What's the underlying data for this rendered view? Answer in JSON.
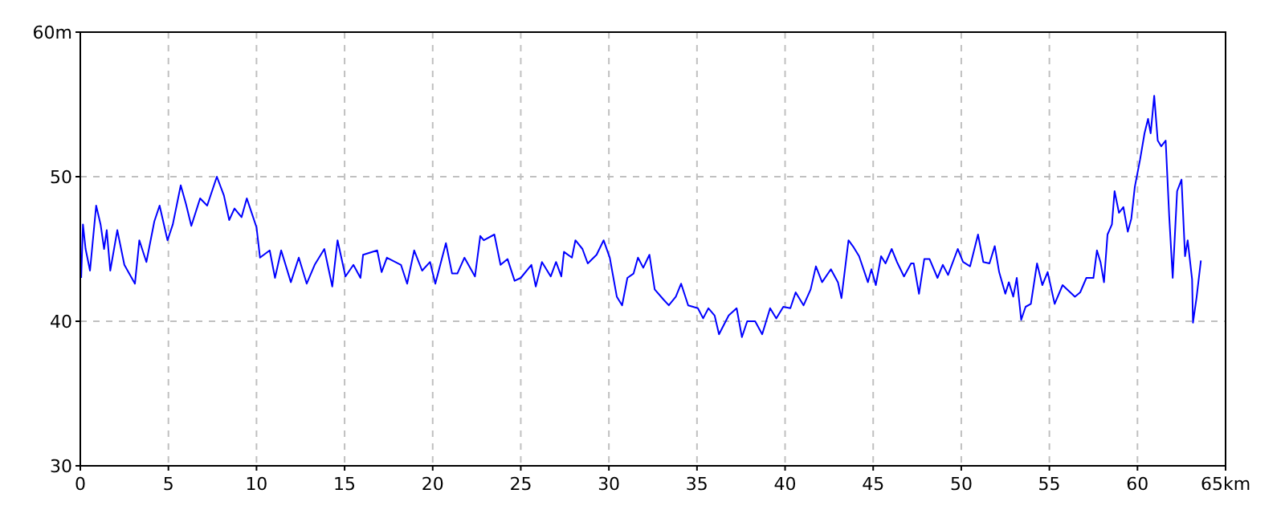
{
  "chart_data": {
    "type": "line",
    "xlim": [
      0,
      65
    ],
    "ylim": [
      30,
      60
    ],
    "xticks": [
      0,
      5,
      10,
      15,
      20,
      25,
      30,
      35,
      40,
      45,
      50,
      55,
      60,
      {
        "value": 65,
        "label": "65km"
      }
    ],
    "yticks": [
      30,
      40,
      50,
      {
        "value": 60,
        "label": "60m"
      }
    ],
    "grid": true,
    "line_style": "solid",
    "marker": "none",
    "series": [
      {
        "color": "#0000ff",
        "x": [
          0.05,
          0.15,
          0.3,
          0.55,
          0.9,
          1.15,
          1.35,
          1.5,
          1.7,
          2.1,
          2.5,
          3.1,
          3.35,
          3.75,
          4.2,
          4.5,
          4.95,
          5.25,
          5.7,
          6.0,
          6.3,
          6.8,
          7.2,
          7.75,
          8.15,
          8.45,
          8.75,
          9.15,
          9.45,
          10.0,
          10.2,
          10.75,
          11.05,
          11.4,
          11.95,
          12.4,
          12.85,
          13.3,
          13.85,
          14.3,
          14.6,
          15.05,
          15.5,
          15.9,
          16.05,
          16.85,
          17.1,
          17.4,
          18.2,
          18.55,
          18.95,
          19.4,
          19.85,
          20.15,
          20.75,
          21.1,
          21.4,
          21.8,
          22.4,
          22.7,
          22.9,
          23.5,
          23.85,
          24.25,
          24.65,
          25.0,
          25.6,
          25.85,
          26.2,
          26.7,
          27.0,
          27.3,
          27.45,
          27.9,
          28.1,
          28.5,
          28.8,
          29.3,
          29.7,
          30.05,
          30.45,
          30.75,
          31.05,
          31.4,
          31.65,
          31.95,
          32.3,
          32.6,
          33.1,
          33.4,
          33.8,
          34.1,
          34.5,
          35.05,
          35.35,
          35.65,
          36.0,
          36.25,
          36.8,
          37.25,
          37.55,
          37.85,
          38.3,
          38.7,
          39.15,
          39.5,
          39.9,
          40.3,
          40.6,
          41.05,
          41.45,
          41.75,
          42.1,
          42.6,
          43.0,
          43.2,
          43.6,
          43.9,
          44.2,
          44.7,
          44.9,
          45.15,
          45.45,
          45.7,
          46.05,
          46.35,
          46.75,
          47.15,
          47.3,
          47.6,
          47.9,
          48.2,
          48.65,
          48.95,
          49.25,
          49.8,
          50.1,
          50.5,
          50.95,
          51.25,
          51.6,
          51.9,
          52.15,
          52.5,
          52.7,
          52.95,
          53.15,
          53.4,
          53.65,
          53.95,
          54.3,
          54.6,
          54.9,
          55.3,
          55.75,
          56.1,
          56.45,
          56.75,
          57.1,
          57.5,
          57.7,
          57.9,
          58.1,
          58.3,
          58.55,
          58.7,
          58.95,
          59.2,
          59.45,
          59.65,
          59.85,
          60.15,
          60.4,
          60.6,
          60.75,
          60.95,
          61.15,
          61.35,
          61.6,
          61.8,
          62.0,
          62.25,
          62.5,
          62.7,
          62.85,
          63.1,
          63.15,
          63.35,
          63.6
        ],
        "values": [
          43.0,
          46.7,
          45.0,
          43.5,
          48.0,
          46.7,
          45.0,
          46.3,
          43.5,
          46.3,
          43.9,
          42.6,
          45.6,
          44.1,
          46.9,
          48.0,
          45.6,
          46.7,
          49.4,
          48.1,
          46.6,
          48.5,
          48.0,
          50.0,
          48.7,
          47.0,
          47.8,
          47.2,
          48.5,
          46.5,
          44.4,
          44.9,
          43.0,
          44.9,
          42.7,
          44.4,
          42.6,
          43.9,
          45.0,
          42.4,
          45.6,
          43.1,
          43.9,
          43.0,
          44.6,
          44.9,
          43.4,
          44.4,
          43.9,
          42.6,
          44.9,
          43.5,
          44.1,
          42.6,
          45.4,
          43.3,
          43.3,
          44.4,
          43.1,
          45.9,
          45.6,
          46.0,
          43.9,
          44.3,
          42.8,
          43.0,
          43.9,
          42.4,
          44.1,
          43.1,
          44.1,
          43.1,
          44.8,
          44.4,
          45.6,
          45.0,
          44.0,
          44.6,
          45.6,
          44.4,
          41.7,
          41.1,
          43.0,
          43.3,
          44.4,
          43.7,
          44.6,
          42.2,
          41.5,
          41.1,
          41.7,
          42.6,
          41.1,
          40.9,
          40.2,
          40.9,
          40.4,
          39.1,
          40.4,
          40.9,
          38.9,
          40.0,
          40.0,
          39.1,
          40.9,
          40.2,
          41.0,
          40.9,
          42.0,
          41.1,
          42.2,
          43.8,
          42.7,
          43.6,
          42.7,
          41.6,
          45.6,
          45.1,
          44.5,
          42.7,
          43.6,
          42.5,
          44.5,
          44.0,
          45.0,
          44.1,
          43.1,
          44.0,
          44.0,
          41.9,
          44.3,
          44.3,
          43.0,
          43.9,
          43.2,
          45.0,
          44.1,
          43.8,
          46.0,
          44.1,
          44.0,
          45.2,
          43.4,
          41.9,
          42.7,
          41.7,
          43.0,
          40.1,
          41.0,
          41.2,
          44.0,
          42.5,
          43.4,
          41.2,
          42.5,
          42.1,
          41.7,
          42.0,
          43.0,
          43.0,
          44.9,
          44.1,
          42.7,
          46.0,
          46.7,
          49.0,
          47.5,
          47.9,
          46.2,
          47.1,
          49.3,
          51.2,
          53.0,
          54.0,
          53.0,
          55.6,
          52.5,
          52.1,
          52.5,
          47.3,
          43.0,
          49.0,
          49.8,
          44.5,
          45.6,
          42.9,
          39.9,
          41.6,
          44.2
        ]
      }
    ]
  }
}
